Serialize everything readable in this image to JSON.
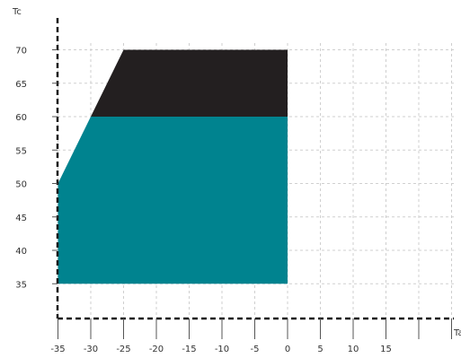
{
  "chart_data": {
    "type": "area",
    "xlabel": "Ta",
    "ylabel": "Tc",
    "x_ticks": [
      "-35",
      "-30",
      "-25",
      "-20",
      "-15",
      "-10",
      "-5",
      "0",
      "5",
      "10",
      "15"
    ],
    "y_ticks": [
      "70",
      "65",
      "60",
      "55",
      "50",
      "45",
      "40",
      "35"
    ],
    "xlim": [
      -40,
      30
    ],
    "ylim": [
      30,
      75
    ],
    "grid": true,
    "regions": [
      {
        "color": "#00838f",
        "points": [
          [
            -35,
            35
          ],
          [
            -35,
            50
          ],
          [
            -30,
            60
          ],
          [
            0,
            60
          ],
          [
            0,
            35
          ]
        ]
      },
      {
        "color": "#231f20",
        "points": [
          [
            -30,
            60
          ],
          [
            -25,
            70
          ],
          [
            0,
            70
          ],
          [
            0,
            60
          ]
        ]
      }
    ]
  }
}
